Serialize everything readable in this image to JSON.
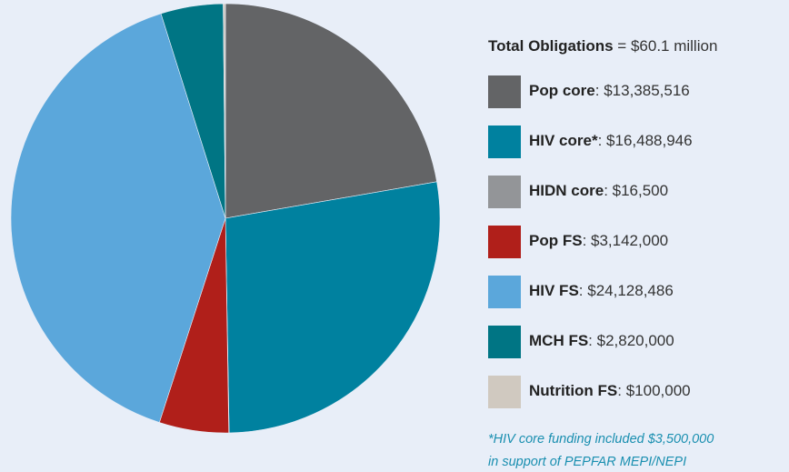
{
  "chart_data": {
    "type": "pie",
    "title": "Total Obligations",
    "subtitle": "$60.1 million",
    "categories": [
      "Pop core",
      "HIV core*",
      "HIDN core",
      "Pop FS",
      "HIV FS",
      "MCH FS",
      "Nutrition FS"
    ],
    "values": [
      13385516,
      16488946,
      16500,
      3142000,
      24128486,
      2820000,
      100000
    ],
    "value_labels": [
      "$13,385,516",
      "$16,488,946",
      "$16,500",
      "$3,142,000",
      "$24,128,486",
      "$2,820,000",
      "$100,000"
    ],
    "colors": [
      "#636466",
      "#00819f",
      "#939598",
      "#b01f1a",
      "#5ba7db",
      "#007584",
      "#d0c9c0"
    ],
    "annotations": [
      "*HIV core funding included $3,500,000",
      "in support of PEPFAR MEPI/NEPI"
    ]
  }
}
